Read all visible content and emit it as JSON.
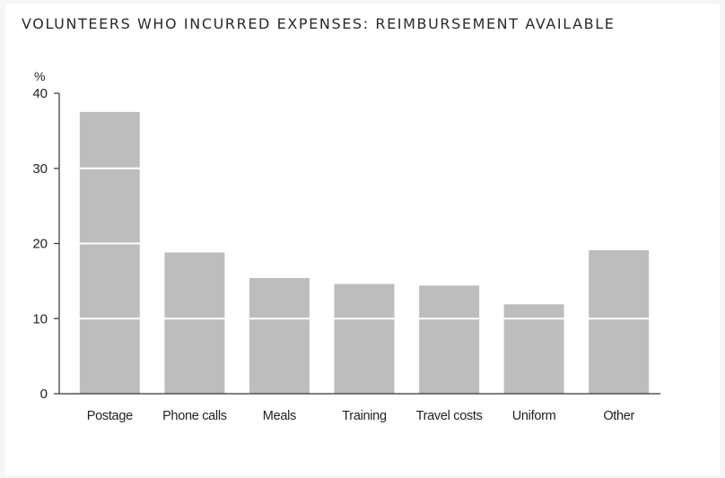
{
  "chart_data": {
    "type": "bar",
    "title": "VOLUNTEERS WHO INCURRED EXPENSES: REIMBURSEMENT AVAILABLE",
    "ylabel": "%",
    "xlabel": "",
    "categories": [
      "Postage",
      "Phone calls",
      "Meals",
      "Training",
      "Travel costs",
      "Uniform",
      "Other"
    ],
    "values": [
      37.5,
      18.8,
      15.4,
      14.6,
      14.4,
      11.9,
      19.1
    ],
    "ylim": [
      0,
      40
    ],
    "yticks": [
      0,
      10,
      20,
      30,
      40
    ],
    "grid": "white lines across bars",
    "legend": "none",
    "colors": {
      "bar": "#bdbdbd",
      "gridline": "#ffffff",
      "axis": "#333333"
    }
  }
}
